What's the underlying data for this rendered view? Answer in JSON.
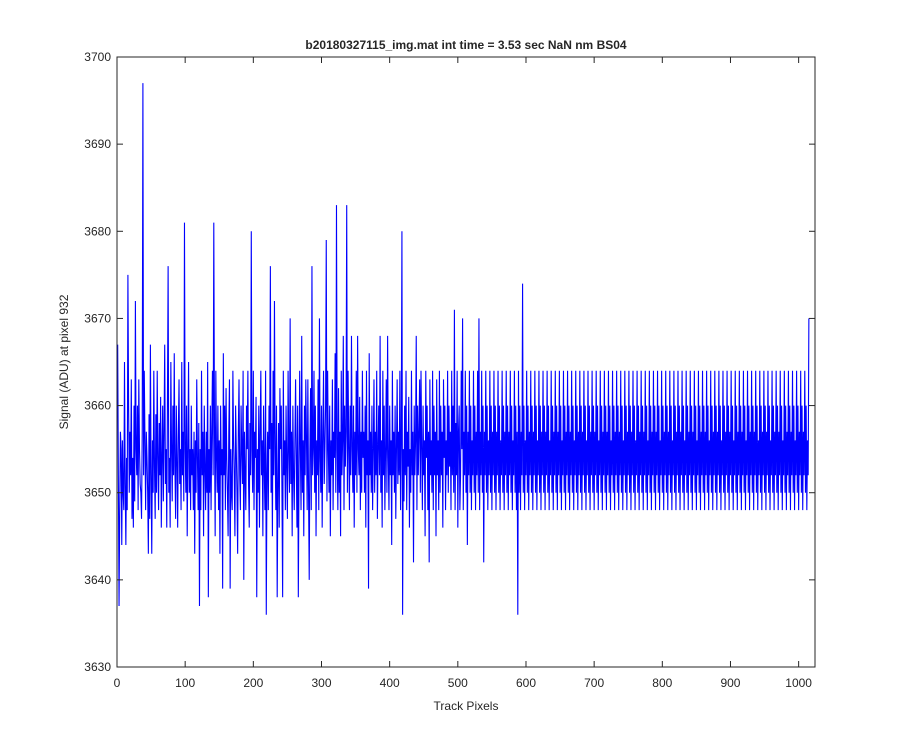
{
  "chart_data": {
    "type": "line",
    "title": "b20180327115_img.mat int time = 3.53 sec  NaN nm BS04",
    "xlabel": "Track Pixels",
    "ylabel": "Signal (ADU) at pixel 932",
    "xlim": [
      0,
      1024
    ],
    "ylim": [
      3630,
      3700
    ],
    "xticks": [
      0,
      100,
      200,
      300,
      400,
      500,
      600,
      700,
      800,
      900,
      1000
    ],
    "yticks": [
      3630,
      3640,
      3650,
      3660,
      3670,
      3680,
      3690,
      3700
    ],
    "grid": false,
    "legend": "none",
    "series": [
      {
        "color": "#0000ff",
        "x_start": 1,
        "x_step": 1,
        "values": [
          3667,
          3652,
          3637,
          3648,
          3657,
          3655,
          3644,
          3656,
          3650,
          3648,
          3665,
          3651,
          3644,
          3654,
          3648,
          3675,
          3660,
          3650,
          3657,
          3652,
          3663,
          3647,
          3654,
          3646,
          3660,
          3649,
          3672,
          3655,
          3652,
          3660,
          3648,
          3663,
          3655,
          3651,
          3650,
          3647,
          3657,
          3697,
          3652,
          3664,
          3656,
          3648,
          3657,
          3654,
          3650,
          3643,
          3659,
          3647,
          3667,
          3652,
          3643,
          3656,
          3650,
          3664,
          3653,
          3647,
          3659,
          3650,
          3664,
          3654,
          3648,
          3658,
          3652,
          3661,
          3646,
          3654,
          3660,
          3649,
          3657,
          3667,
          3651,
          3655,
          3646,
          3660,
          3676,
          3650,
          3654,
          3646,
          3665,
          3655,
          3649,
          3660,
          3652,
          3666,
          3653,
          3647,
          3660,
          3654,
          3646,
          3657,
          3663,
          3651,
          3655,
          3648,
          3665,
          3652,
          3657,
          3649,
          3681,
          3655,
          3650,
          3660,
          3645,
          3655,
          3665,
          3650,
          3655,
          3648,
          3660,
          3652,
          3655,
          3648,
          3657,
          3643,
          3656,
          3650,
          3663,
          3654,
          3648,
          3658,
          3637,
          3655,
          3648,
          3664,
          3652,
          3657,
          3645,
          3660,
          3653,
          3648,
          3657,
          3650,
          3665,
          3638,
          3655,
          3650,
          3660,
          3648,
          3657,
          3664,
          3652,
          3681,
          3658,
          3645,
          3664,
          3654,
          3650,
          3660,
          3648,
          3656,
          3643,
          3660,
          3652,
          3655,
          3639,
          3666,
          3652,
          3660,
          3648,
          3662,
          3654,
          3650,
          3645,
          3657,
          3663,
          3639,
          3655,
          3650,
          3648,
          3664,
          3656,
          3652,
          3645,
          3660,
          3655,
          3650,
          3643,
          3657,
          3663,
          3652,
          3648,
          3660,
          3655,
          3651,
          3664,
          3640,
          3657,
          3652,
          3648,
          3660,
          3655,
          3664,
          3651,
          3646,
          3658,
          3652,
          3680,
          3655,
          3650,
          3664,
          3648,
          3657,
          3654,
          3661,
          3638,
          3655,
          3650,
          3660,
          3646,
          3657,
          3664,
          3652,
          3656,
          3645,
          3660,
          3653,
          3648,
          3664,
          3636,
          3652,
          3657,
          3648,
          3660,
          3655,
          3676,
          3650,
          3658,
          3645,
          3664,
          3652,
          3672,
          3655,
          3648,
          3660,
          3638,
          3651,
          3658,
          3646,
          3662,
          3655,
          3660,
          3650,
          3638,
          3664,
          3652,
          3656,
          3648,
          3660,
          3653,
          3647,
          3664,
          3655,
          3650,
          3670,
          3651,
          3657,
          3645,
          3660,
          3652,
          3648,
          3656,
          3663,
          3654,
          3646,
          3660,
          3638,
          3652,
          3664,
          3655,
          3648,
          3668,
          3650,
          3656,
          3645,
          3660,
          3652,
          3663,
          3656,
          3648,
          3663,
          3650,
          3640,
          3655,
          3662,
          3648,
          3676,
          3652,
          3655,
          3664,
          3650,
          3660,
          3645,
          3656,
          3652,
          3663,
          3648,
          3670,
          3654,
          3650,
          3660,
          3646,
          3657,
          3664,
          3651,
          3655,
          3660,
          3679,
          3649,
          3664,
          3655,
          3650,
          3660,
          3645,
          3656,
          3652,
          3663,
          3648,
          3657,
          3654,
          3666,
          3650,
          3683,
          3655,
          3648,
          3662,
          3650,
          3657,
          3645,
          3664,
          3652,
          3656,
          3668,
          3648,
          3660,
          3653,
          3657,
          3683,
          3650,
          3664,
          3655,
          3648,
          3660,
          3652,
          3668,
          3655,
          3650,
          3660,
          3646,
          3657,
          3652,
          3664,
          3650,
          3668,
          3655,
          3652,
          3661,
          3648,
          3657,
          3650,
          3664,
          3654,
          3657,
          3650,
          3660,
          3646,
          3664,
          3652,
          3656,
          3639,
          3666,
          3652,
          3657,
          3650,
          3660,
          3648,
          3655,
          3663,
          3650,
          3657,
          3652,
          3664,
          3647,
          3655,
          3660,
          3652,
          3668,
          3650,
          3656,
          3646,
          3664,
          3652,
          3660,
          3648,
          3655,
          3663,
          3650,
          3668,
          3654,
          3648,
          3660,
          3652,
          3656,
          3644,
          3664,
          3652,
          3657,
          3650,
          3660,
          3647,
          3655,
          3663,
          3651,
          3657,
          3652,
          3664,
          3648,
          3656,
          3680,
          3636,
          3655,
          3649,
          3660,
          3652,
          3664,
          3648,
          3657,
          3653,
          3661,
          3646,
          3655,
          3650,
          3664,
          3652,
          3657,
          3642,
          3660,
          3652,
          3656,
          3668,
          3648,
          3660,
          3652,
          3657,
          3663,
          3650,
          3664,
          3655,
          3648,
          3660,
          3652,
          3656,
          3645,
          3664,
          3654,
          3660,
          3648,
          3657,
          3642,
          3663,
          3652,
          3656,
          3650,
          3664,
          3648,
          3660,
          3652,
          3657,
          3645,
          3663,
          3652,
          3656,
          3648,
          3664,
          3650,
          3660,
          3652,
          3657,
          3646,
          3663,
          3654,
          3660,
          3648,
          3656,
          3652,
          3664,
          3650,
          3660,
          3653,
          3657,
          3648,
          3664,
          3652,
          3660,
          3650,
          3671,
          3648,
          3658,
          3652,
          3664,
          3646,
          3657,
          3660,
          3648,
          3652,
          3664,
          3655,
          3670,
          3648,
          3657,
          3652,
          3664,
          3650,
          3660,
          3644,
          3657,
          3652,
          3664,
          3650,
          3660,
          3648,
          3656,
          3652,
          3664,
          3650,
          3660,
          3648,
          3657,
          3652,
          3664,
          3650,
          3670,
          3648,
          3657,
          3652,
          3664,
          3650,
          3660,
          3642,
          3657,
          3652,
          3664,
          3650,
          3660,
          3648,
          3656,
          3652,
          3664,
          3650,
          3660,
          3648,
          3657,
          3652,
          3664,
          3650,
          3660,
          3648,
          3657,
          3652,
          3664,
          3650,
          3660,
          3648,
          3656,
          3652,
          3664,
          3650,
          3660,
          3648,
          3657,
          3652,
          3664,
          3650,
          3660,
          3648,
          3657,
          3652,
          3664,
          3650,
          3660,
          3648,
          3656,
          3652,
          3664,
          3650,
          3660,
          3648,
          3657,
          3636,
          3664,
          3650,
          3660,
          3648,
          3657,
          3652,
          3674,
          3650,
          3660,
          3648,
          3656,
          3652,
          3664,
          3650,
          3660,
          3648,
          3657,
          3652,
          3664,
          3650,
          3660,
          3648,
          3657,
          3652,
          3664,
          3650,
          3660,
          3648,
          3656,
          3652,
          3664,
          3650,
          3660,
          3648,
          3657,
          3652,
          3664,
          3650,
          3660,
          3648,
          3657,
          3652,
          3664,
          3650,
          3660,
          3648,
          3656,
          3652,
          3664,
          3650,
          3660,
          3648,
          3657,
          3652,
          3664,
          3650,
          3660,
          3648,
          3657,
          3652,
          3664,
          3650,
          3660,
          3648,
          3656,
          3652,
          3664,
          3650,
          3660,
          3648,
          3657,
          3652,
          3664,
          3650,
          3660,
          3648,
          3657,
          3652,
          3664,
          3650,
          3660,
          3648,
          3656,
          3652,
          3664,
          3650,
          3660,
          3648,
          3657,
          3652,
          3664,
          3650,
          3660,
          3648,
          3657,
          3652,
          3664,
          3650,
          3660,
          3648,
          3656,
          3652,
          3664,
          3650,
          3660,
          3648,
          3657,
          3652,
          3664,
          3650,
          3660,
          3648,
          3657,
          3652,
          3664,
          3650,
          3660,
          3648,
          3656,
          3652,
          3664,
          3650,
          3660,
          3648,
          3657,
          3652,
          3664,
          3650,
          3660,
          3648,
          3657,
          3652,
          3664,
          3650,
          3660,
          3648,
          3656,
          3652,
          3664,
          3650,
          3660,
          3648,
          3657,
          3652,
          3664,
          3650,
          3660,
          3648,
          3657,
          3652,
          3664,
          3650,
          3660,
          3648,
          3656,
          3652,
          3664,
          3650,
          3660,
          3648,
          3657,
          3652,
          3664,
          3650,
          3660,
          3648,
          3657,
          3652,
          3664,
          3650,
          3660,
          3648,
          3656,
          3652,
          3664,
          3650,
          3660,
          3648,
          3657,
          3652,
          3664,
          3650,
          3660,
          3648,
          3657,
          3652,
          3664,
          3650,
          3660,
          3648,
          3656,
          3652,
          3664,
          3650,
          3660,
          3648,
          3657,
          3652,
          3664,
          3650,
          3660,
          3648,
          3657,
          3652,
          3664,
          3650,
          3660,
          3648,
          3656,
          3652,
          3664,
          3650,
          3660,
          3648,
          3657,
          3652,
          3664,
          3650,
          3660,
          3648,
          3657,
          3652,
          3664,
          3650,
          3660,
          3648,
          3656,
          3652,
          3664,
          3650,
          3660,
          3648,
          3657,
          3652,
          3664,
          3650,
          3660,
          3648,
          3657,
          3652,
          3664,
          3650,
          3660,
          3648,
          3656,
          3652,
          3664,
          3650,
          3660,
          3648,
          3657,
          3652,
          3664,
          3650,
          3660,
          3648,
          3657,
          3652,
          3664,
          3650,
          3660,
          3648,
          3656,
          3652,
          3664,
          3650,
          3660,
          3648,
          3657,
          3652,
          3664,
          3650,
          3660,
          3648,
          3657,
          3652,
          3664,
          3650,
          3660,
          3648,
          3656,
          3652,
          3664,
          3650,
          3660,
          3648,
          3657,
          3652,
          3664,
          3650,
          3660,
          3648,
          3657,
          3652,
          3664,
          3650,
          3660,
          3648,
          3656,
          3652,
          3664,
          3650,
          3660,
          3648,
          3657,
          3652,
          3664,
          3650,
          3660,
          3648,
          3657,
          3652,
          3664,
          3650,
          3660,
          3648,
          3656,
          3652,
          3664,
          3650,
          3660,
          3648,
          3657,
          3652,
          3664,
          3650,
          3660,
          3648,
          3657,
          3652,
          3664,
          3650,
          3660,
          3648,
          3656,
          3652,
          3664,
          3650,
          3660,
          3648,
          3657,
          3652,
          3664,
          3650,
          3660,
          3648,
          3657,
          3652,
          3664,
          3650,
          3660,
          3648,
          3656,
          3652,
          3664,
          3650,
          3660,
          3648,
          3657,
          3652,
          3664,
          3650,
          3660,
          3648,
          3657,
          3652,
          3664,
          3650,
          3660,
          3648,
          3656,
          3652,
          3664,
          3650,
          3660,
          3648,
          3657,
          3652,
          3664,
          3650,
          3660,
          3648,
          3657,
          3652,
          3664,
          3650,
          3660,
          3648,
          3656,
          3652,
          3664,
          3650,
          3660,
          3648,
          3657,
          3652,
          3664,
          3650,
          3660,
          3648,
          3657,
          3652,
          3664,
          3650,
          3660,
          3648,
          3656,
          3652,
          3664,
          3650,
          3660,
          3648,
          3657,
          3652,
          3664,
          3650,
          3660,
          3648,
          3657,
          3652,
          3664,
          3650,
          3660,
          3648,
          3656,
          3652,
          3670
        ]
      }
    ]
  }
}
